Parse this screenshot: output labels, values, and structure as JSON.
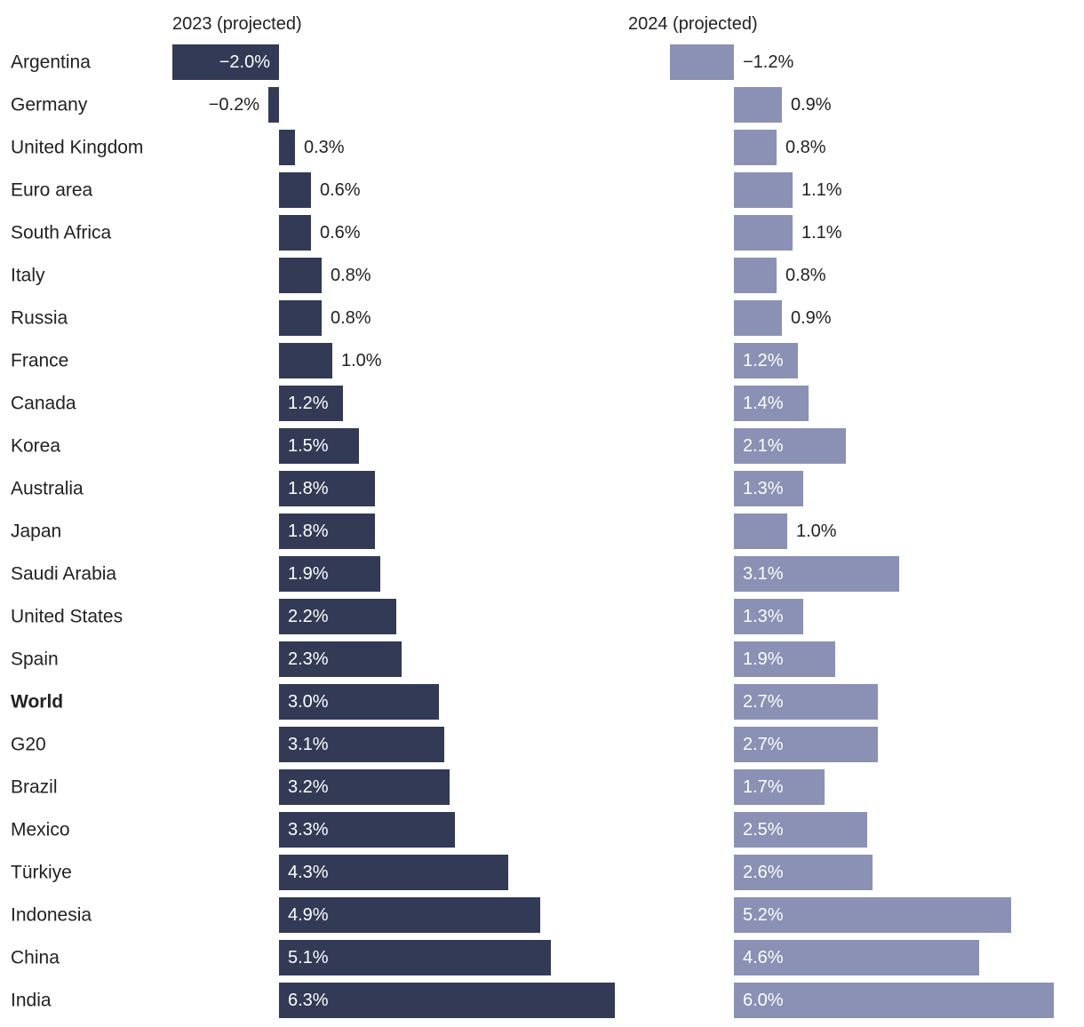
{
  "chart_data": {
    "type": "bar",
    "orientation": "horizontal",
    "categories": [
      "Argentina",
      "Germany",
      "United Kingdom",
      "Euro area",
      "South Africa",
      "Italy",
      "Russia",
      "France",
      "Canada",
      "Korea",
      "Australia",
      "Japan",
      "Saudi Arabia",
      "United States",
      "Spain",
      "World",
      "G20",
      "Brazil",
      "Mexico",
      "Türkiye",
      "Indonesia",
      "China",
      "India"
    ],
    "highlight_category": "World",
    "series": [
      {
        "name": "2023 (projected)",
        "color": "#323a56",
        "values": [
          -2.0,
          -0.2,
          0.3,
          0.6,
          0.6,
          0.8,
          0.8,
          1.0,
          1.2,
          1.5,
          1.8,
          1.8,
          1.9,
          2.2,
          2.3,
          3.0,
          3.1,
          3.2,
          3.3,
          4.3,
          4.9,
          5.1,
          6.3
        ],
        "labels": [
          "−2.0%",
          "−0.2%",
          "0.3%",
          "0.6%",
          "0.6%",
          "0.8%",
          "0.8%",
          "1.0%",
          "1.2%",
          "1.5%",
          "1.8%",
          "1.8%",
          "1.9%",
          "2.2%",
          "2.3%",
          "3.0%",
          "3.1%",
          "3.2%",
          "3.3%",
          "4.3%",
          "4.9%",
          "5.1%",
          "6.3%"
        ],
        "xlim": [
          -2.0,
          6.3
        ]
      },
      {
        "name": "2024 (projected)",
        "color": "#8a91b4",
        "values": [
          -1.2,
          0.9,
          0.8,
          1.1,
          1.1,
          0.8,
          0.9,
          1.2,
          1.4,
          2.1,
          1.3,
          1.0,
          3.1,
          1.3,
          1.9,
          2.7,
          2.7,
          1.7,
          2.5,
          2.6,
          5.2,
          4.6,
          6.0
        ],
        "labels": [
          "−1.2%",
          "0.9%",
          "0.8%",
          "1.1%",
          "1.1%",
          "0.8%",
          "0.9%",
          "1.2%",
          "1.4%",
          "2.1%",
          "1.3%",
          "1.0%",
          "3.1%",
          "1.3%",
          "1.9%",
          "2.7%",
          "2.7%",
          "1.7%",
          "2.5%",
          "2.6%",
          "5.2%",
          "4.6%",
          "6.0%"
        ],
        "xlim": [
          -1.2,
          6.0
        ]
      }
    ],
    "title": "",
    "xlabel": "",
    "ylabel": "",
    "grid": false,
    "legend": "none"
  }
}
